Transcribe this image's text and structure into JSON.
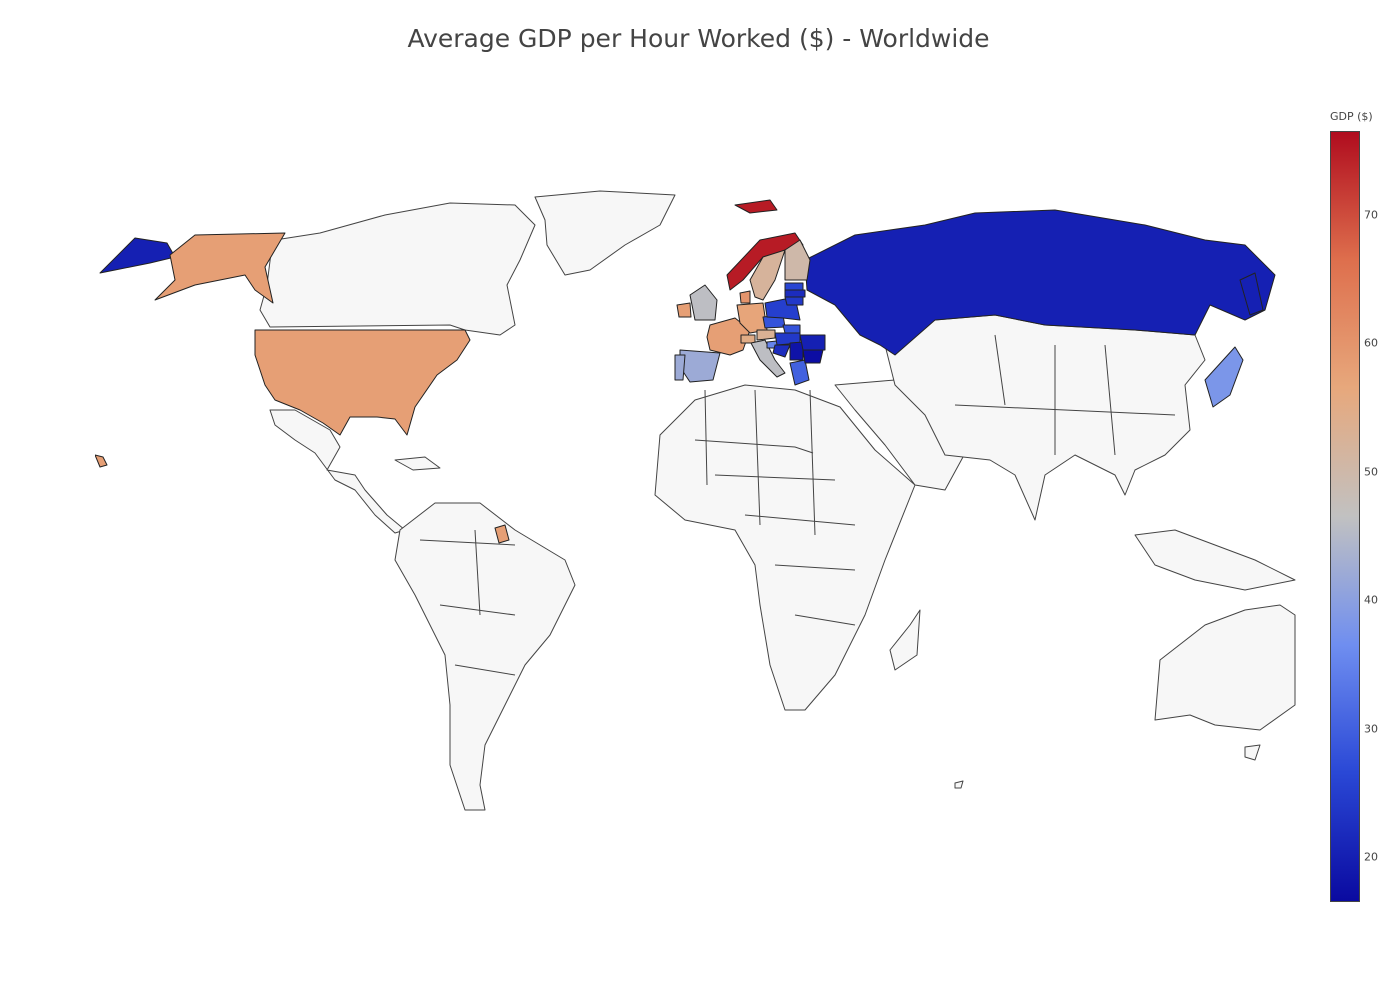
{
  "title": "Average GDP per Hour Worked ($) - Worldwide",
  "chart_data": {
    "type": "choropleth",
    "title": "Average GDP per Hour Worked ($) - Worldwide",
    "colorbar": {
      "title": "GDP ($)",
      "range": [
        16.5,
        76.5
      ],
      "ticks": [
        20,
        30,
        40,
        50,
        60,
        70
      ],
      "colorscale": [
        "#0a0aa0",
        "#2a48d6",
        "#6f8ef0",
        "#c1c1c1",
        "#e7a87c",
        "#de6f4d",
        "#b00c1e"
      ]
    },
    "countries": [
      {
        "name": "Norway",
        "value": 75
      },
      {
        "name": "United States",
        "value": 58
      },
      {
        "name": "France",
        "value": 58
      },
      {
        "name": "Germany",
        "value": 57
      },
      {
        "name": "Denmark",
        "value": 60
      },
      {
        "name": "Ireland",
        "value": 58
      },
      {
        "name": "Sweden",
        "value": 52
      },
      {
        "name": "Finland",
        "value": 50
      },
      {
        "name": "Austria",
        "value": 53
      },
      {
        "name": "Switzerland",
        "value": 55
      },
      {
        "name": "United Kingdom",
        "value": 46
      },
      {
        "name": "Italy",
        "value": 46
      },
      {
        "name": "Spain",
        "value": 42
      },
      {
        "name": "Japan",
        "value": 38
      },
      {
        "name": "Slovenia",
        "value": 35
      },
      {
        "name": "Greece",
        "value": 30
      },
      {
        "name": "Czech Republic",
        "value": 28
      },
      {
        "name": "Slovakia",
        "value": 28
      },
      {
        "name": "Poland",
        "value": 25
      },
      {
        "name": "Hungary",
        "value": 24
      },
      {
        "name": "Estonia",
        "value": 26
      },
      {
        "name": "Lithuania",
        "value": 24
      },
      {
        "name": "Latvia",
        "value": 22
      },
      {
        "name": "Croatia",
        "value": 22
      },
      {
        "name": "Serbia",
        "value": 18
      },
      {
        "name": "Romania",
        "value": 20
      },
      {
        "name": "Bulgaria",
        "value": 17
      },
      {
        "name": "Russia",
        "value": 20
      }
    ]
  }
}
